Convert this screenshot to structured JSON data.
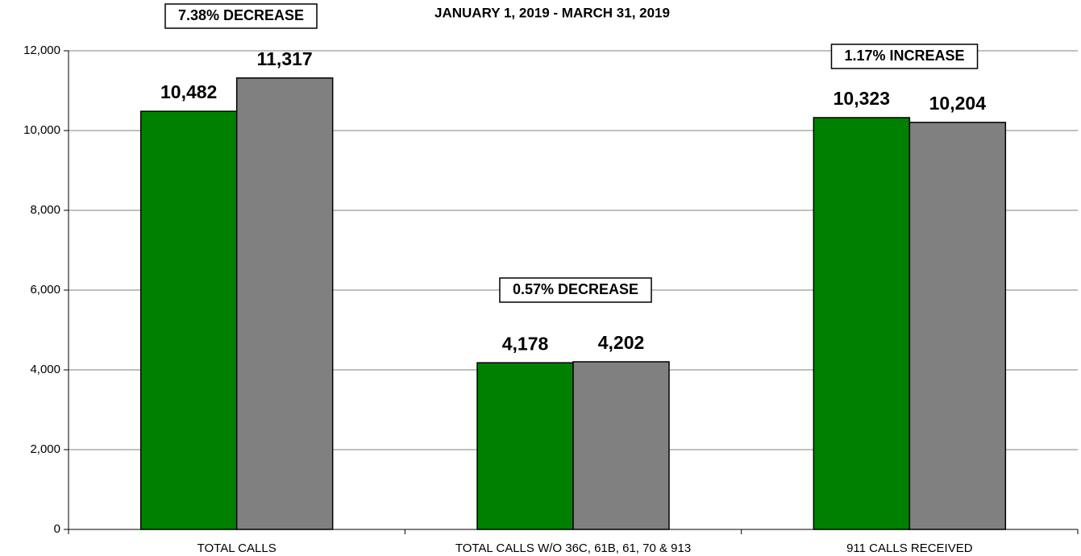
{
  "chart_data": {
    "type": "bar",
    "title": "JANUARY 1, 2019 - MARCH 31, 2019",
    "categories": [
      "TOTAL CALLS",
      "TOTAL CALLS W/O 36C, 61B, 61, 70 & 913",
      "911 CALLS RECEIVED"
    ],
    "series": [
      {
        "color": "#008000",
        "values": [
          10482,
          4178,
          10323
        ],
        "value_labels": [
          "10,482",
          "4,178",
          "10,323"
        ]
      },
      {
        "color": "#808080",
        "values": [
          11317,
          4202,
          10204
        ],
        "value_labels": [
          "11,317",
          "4,202",
          "10,204"
        ]
      }
    ],
    "annotations": [
      "7.38% DECREASE",
      "0.57% DECREASE",
      "1.17% INCREASE"
    ],
    "ylim": [
      0,
      12000
    ],
    "yticks": [
      0,
      {
        "value": 2000,
        "label": "2,000"
      },
      {
        "value": 4000,
        "label": "4,000"
      },
      {
        "value": 6000,
        "label": "6,000"
      },
      {
        "value": 8000,
        "label": "8,000"
      },
      {
        "value": 10000,
        "label": "10,000"
      },
      {
        "value": 12000,
        "label": "12,000"
      }
    ],
    "grid": true
  }
}
